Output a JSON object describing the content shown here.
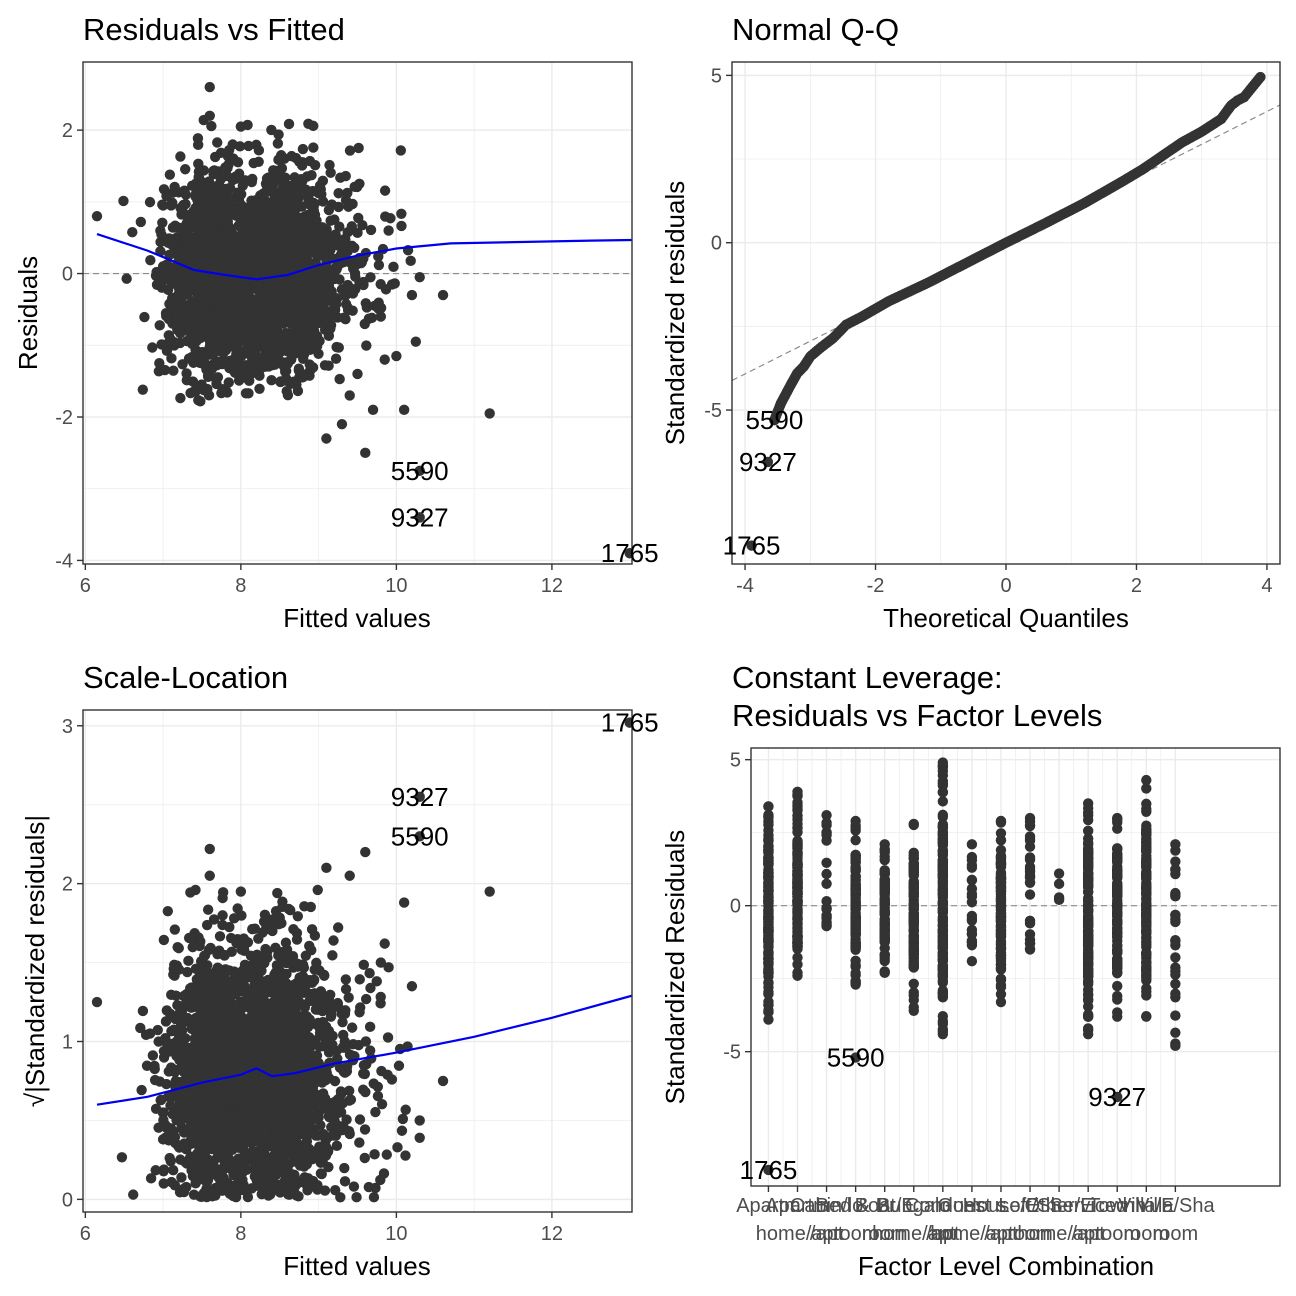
{
  "chart_data": [
    {
      "type": "scatter",
      "title": "Residuals vs Fitted",
      "xlabel": "Fitted values",
      "ylabel": "Residuals",
      "xlim": [
        5.97,
        13.03
      ],
      "ylim": [
        -4.05,
        2.95
      ],
      "xticks": [
        6,
        8,
        10,
        12
      ],
      "yticks": [
        -4,
        -2,
        0,
        2
      ],
      "x_tick_labels": [
        "6",
        "8",
        "10",
        "12"
      ],
      "y_tick_labels": [
        "-4",
        "-2",
        "0",
        "2"
      ],
      "reference_line": {
        "y": 0,
        "style": "dashed",
        "color": "#8c8c8c"
      },
      "smooth_color": "#0000ee",
      "point_color": "#333333",
      "clusters": [
        {
          "cx": 7.6,
          "cy": 0.0,
          "sx": 0.28,
          "sy": 0.72,
          "n": 900
        },
        {
          "cx": 8.5,
          "cy": -0.05,
          "sx": 0.32,
          "sy": 0.75,
          "n": 1100
        },
        {
          "cx": 8.1,
          "cy": 0.0,
          "sx": 0.6,
          "sy": 0.65,
          "n": 350
        },
        {
          "cx": 9.2,
          "cy": 0.1,
          "sx": 0.45,
          "sy": 0.6,
          "n": 160
        }
      ],
      "points": [
        {
          "x": 6.15,
          "y": 0.8
        },
        {
          "x": 7.6,
          "y": 2.6
        },
        {
          "x": 7.6,
          "y": 2.2
        },
        {
          "x": 8.0,
          "y": 2.05
        },
        {
          "x": 7.0,
          "y": 0.1
        },
        {
          "x": 7.0,
          "y": 0.95
        },
        {
          "x": 9.5,
          "y": -1.4
        },
        {
          "x": 9.3,
          "y": -2.1
        },
        {
          "x": 9.1,
          "y": -2.3
        },
        {
          "x": 9.6,
          "y": -2.5
        },
        {
          "x": 9.85,
          "y": -1.2
        },
        {
          "x": 9.7,
          "y": -1.9
        },
        {
          "x": 10.1,
          "y": -1.9
        },
        {
          "x": 10.0,
          "y": -1.15
        },
        {
          "x": 10.2,
          "y": -0.3
        },
        {
          "x": 10.6,
          "y": -0.3
        },
        {
          "x": 10.25,
          "y": -0.95
        },
        {
          "x": 10.3,
          "y": -0.05
        },
        {
          "x": 9.9,
          "y": 0.6
        },
        {
          "x": 9.8,
          "y": -0.6
        },
        {
          "x": 9.4,
          "y": -1.7
        },
        {
          "x": 11.2,
          "y": -1.95
        },
        {
          "x": 10.3,
          "y": -2.75
        },
        {
          "x": 10.3,
          "y": -3.4
        },
        {
          "x": 13.0,
          "y": -3.9
        }
      ],
      "smooth": [
        [
          6.15,
          0.55
        ],
        [
          6.8,
          0.32
        ],
        [
          7.4,
          0.05
        ],
        [
          7.8,
          -0.02
        ],
        [
          8.2,
          -0.08
        ],
        [
          8.6,
          -0.02
        ],
        [
          9.0,
          0.12
        ],
        [
          9.5,
          0.25
        ],
        [
          10.0,
          0.35
        ],
        [
          10.7,
          0.42
        ],
        [
          11.6,
          0.44
        ],
        [
          12.5,
          0.46
        ],
        [
          13.1,
          0.47
        ]
      ],
      "labeled_points": [
        {
          "label": "5590",
          "x": 10.3,
          "y": -2.75
        },
        {
          "label": "9327",
          "x": 10.3,
          "y": -3.4
        },
        {
          "label": "1765",
          "x": 13.0,
          "y": -3.9
        }
      ]
    },
    {
      "type": "scatter",
      "title": "Normal Q-Q",
      "xlabel": "Theoretical Quantiles",
      "ylabel": "Standardized residuals",
      "xlim": [
        -4.2,
        4.2
      ],
      "ylim": [
        -9.6,
        5.4
      ],
      "xticks": [
        -4,
        -2,
        0,
        2,
        4
      ],
      "yticks": [
        -5,
        0,
        5
      ],
      "x_tick_labels": [
        "-4",
        "-2",
        "0",
        "2",
        "4"
      ],
      "y_tick_labels": [
        "-5",
        "0",
        "5"
      ],
      "reference_line": {
        "intercept": 0,
        "slope": 0.98,
        "style": "dashed",
        "color": "#8c8c8c"
      },
      "point_color": "#333333",
      "qq_curve": [
        [
          -3.55,
          -5.3
        ],
        [
          -3.45,
          -4.8
        ],
        [
          -3.3,
          -4.25
        ],
        [
          -3.2,
          -3.9
        ],
        [
          -3.1,
          -3.7
        ],
        [
          -3.0,
          -3.4
        ],
        [
          -2.85,
          -3.15
        ],
        [
          -2.65,
          -2.85
        ],
        [
          -2.45,
          -2.45
        ],
        [
          -2.2,
          -2.2
        ],
        [
          -1.8,
          -1.75
        ],
        [
          -1.2,
          -1.2
        ],
        [
          -0.6,
          -0.6
        ],
        [
          0.0,
          0.0
        ],
        [
          0.6,
          0.58
        ],
        [
          1.2,
          1.18
        ],
        [
          1.8,
          1.85
        ],
        [
          2.1,
          2.2
        ],
        [
          2.4,
          2.6
        ],
        [
          2.7,
          3.0
        ],
        [
          3.0,
          3.32
        ],
        [
          3.3,
          3.7
        ],
        [
          3.45,
          4.1
        ],
        [
          3.55,
          4.25
        ],
        [
          3.65,
          4.35
        ],
        [
          3.9,
          4.95
        ]
      ],
      "labeled_points": [
        {
          "label": "5590",
          "x": -3.55,
          "y": -5.3
        },
        {
          "label": "9327",
          "x": -3.65,
          "y": -6.55
        },
        {
          "label": "1765",
          "x": -3.9,
          "y": -9.05
        }
      ]
    },
    {
      "type": "scatter",
      "title": "Scale-Location",
      "xlabel": "Fitted values",
      "ylabel": "√|Standardized residuals|",
      "xlim": [
        5.97,
        13.03
      ],
      "ylim": [
        -0.08,
        3.1
      ],
      "xticks": [
        6,
        8,
        10,
        12
      ],
      "yticks": [
        0,
        1,
        2,
        3
      ],
      "x_tick_labels": [
        "6",
        "8",
        "10",
        "12"
      ],
      "y_tick_labels": [
        "0",
        "1",
        "2",
        "3"
      ],
      "smooth_color": "#0000ee",
      "point_color": "#333333",
      "clusters": [
        {
          "cx": 7.6,
          "cy": 0.8,
          "sx": 0.28,
          "sy": 0.42,
          "n": 900
        },
        {
          "cx": 8.5,
          "cy": 0.8,
          "sx": 0.32,
          "sy": 0.44,
          "n": 1100
        },
        {
          "cx": 8.1,
          "cy": 0.8,
          "sx": 0.6,
          "sy": 0.38,
          "n": 350
        },
        {
          "cx": 9.2,
          "cy": 0.85,
          "sx": 0.45,
          "sy": 0.35,
          "n": 160
        }
      ],
      "points": [
        {
          "x": 6.15,
          "y": 1.25
        },
        {
          "x": 7.6,
          "y": 2.22
        },
        {
          "x": 7.6,
          "y": 2.05
        },
        {
          "x": 8.0,
          "y": 1.95
        },
        {
          "x": 9.1,
          "y": 2.1
        },
        {
          "x": 9.6,
          "y": 2.2
        },
        {
          "x": 9.4,
          "y": 2.05
        },
        {
          "x": 10.1,
          "y": 1.88
        },
        {
          "x": 9.8,
          "y": 1.5
        },
        {
          "x": 9.85,
          "y": 1.62
        },
        {
          "x": 9.9,
          "y": 1.47
        },
        {
          "x": 10.2,
          "y": 1.35
        },
        {
          "x": 10.3,
          "y": 0.5
        },
        {
          "x": 10.3,
          "y": 0.39
        },
        {
          "x": 10.6,
          "y": 0.75
        },
        {
          "x": 7.1,
          "y": 0.45
        },
        {
          "x": 7.0,
          "y": 0.38
        },
        {
          "x": 11.2,
          "y": 1.95
        },
        {
          "x": 10.3,
          "y": 2.3
        },
        {
          "x": 10.3,
          "y": 2.55
        },
        {
          "x": 13.0,
          "y": 3.02
        }
      ],
      "smooth": [
        [
          6.15,
          0.6
        ],
        [
          6.8,
          0.65
        ],
        [
          7.5,
          0.74
        ],
        [
          8.0,
          0.79
        ],
        [
          8.2,
          0.83
        ],
        [
          8.4,
          0.78
        ],
        [
          8.7,
          0.8
        ],
        [
          9.2,
          0.86
        ],
        [
          10.0,
          0.93
        ],
        [
          11.0,
          1.03
        ],
        [
          12.0,
          1.15
        ],
        [
          13.1,
          1.3
        ]
      ],
      "labeled_points": [
        {
          "label": "9327",
          "x": 10.3,
          "y": 2.55
        },
        {
          "label": "5590",
          "x": 10.3,
          "y": 2.3
        },
        {
          "label": "1765",
          "x": 13.0,
          "y": 3.02
        }
      ]
    },
    {
      "type": "scatter",
      "title": "Constant Leverage:\nResiduals vs Factor Levels",
      "title_lines": [
        "Constant Leverage:",
        "Residuals vs Factor Levels"
      ],
      "xlabel": "Factor Level Combination",
      "ylabel": "Standardized Residuals",
      "xlim": [
        0.4,
        18.6
      ],
      "ylim": [
        -9.6,
        5.4
      ],
      "yticks": [
        -5,
        0,
        5
      ],
      "y_tick_labels": [
        "-5",
        "0",
        "5"
      ],
      "reference_line": {
        "y": 0,
        "style": "dashed",
        "color": "#8c8c8c"
      },
      "point_color": "#333333",
      "columns": [
        {
          "x": 1,
          "ymin": -3.9,
          "ymax": 3.4,
          "n": 190
        },
        {
          "x": 2,
          "ymin": -2.4,
          "ymax": 3.9,
          "n": 160
        },
        {
          "x": 3,
          "ymin": -0.7,
          "ymax": 3.1,
          "n": 20
        },
        {
          "x": 4,
          "ymin": -2.7,
          "ymax": 2.9,
          "n": 120
        },
        {
          "x": 5,
          "ymin": -2.3,
          "ymax": 2.1,
          "n": 90
        },
        {
          "x": 6,
          "ymin": -3.6,
          "ymax": 2.8,
          "n": 120
        },
        {
          "x": 7,
          "ymin": -4.4,
          "ymax": 4.9,
          "n": 160
        },
        {
          "x": 8,
          "ymin": -1.9,
          "ymax": 2.1,
          "n": 20
        },
        {
          "x": 9,
          "ymin": -3.3,
          "ymax": 2.9,
          "n": 120
        },
        {
          "x": 10,
          "ymin": -1.5,
          "ymax": 3.0,
          "n": 25
        },
        {
          "x": 11,
          "ymin": 0.2,
          "ymax": 1.1,
          "n": 2
        },
        {
          "x": 12,
          "ymin": -4.4,
          "ymax": 3.5,
          "n": 150
        },
        {
          "x": 13,
          "ymin": -3.8,
          "ymax": 3.0,
          "n": 120
        },
        {
          "x": 14,
          "ymin": -3.8,
          "ymax": 4.3,
          "n": 130
        },
        {
          "x": 15,
          "ymin": -4.8,
          "ymax": 2.1,
          "n": 25
        }
      ],
      "points": [
        {
          "x": 4,
          "y": -5.2
        },
        {
          "x": 13,
          "y": -6.55
        },
        {
          "x": 1,
          "y": -9.05
        }
      ],
      "x_tick_labels": [
        {
          "line1": "Apartm",
          "line2": ""
        },
        {
          "line1": "Apartm",
          "line2": "home/apt"
        },
        {
          "line1": "Cabin/lo",
          "line2": "/apt"
        },
        {
          "line1": "Bed & Br",
          "line2": "room"
        },
        {
          "line1": "Boat/E",
          "line2": "room"
        },
        {
          "line1": "Bungalo",
          "line2": "home/apt"
        },
        {
          "line1": "Condom",
          "line2": "/apt"
        },
        {
          "line1": "Guest s",
          "line2": "home/apt"
        },
        {
          "line1": "House/E",
          "line2": "/apt"
        },
        {
          "line1": "Loft/Sh",
          "line2": "room"
        },
        {
          "line1": "Other/E",
          "line2": "home/apt"
        },
        {
          "line1": "Serviced",
          "line2": "/apt"
        },
        {
          "line1": "Townh",
          "line2": "room"
        },
        {
          "line1": "Villa/E",
          "line2": "room"
        },
        {
          "line1": "Villa/Sha",
          "line2": "room"
        }
      ],
      "labeled_points": [
        {
          "label": "5590",
          "x": 4,
          "y": -5.2
        },
        {
          "label": "9327",
          "x": 13,
          "y": -6.55
        },
        {
          "label": "1765",
          "x": 1,
          "y": -9.05
        }
      ]
    }
  ]
}
